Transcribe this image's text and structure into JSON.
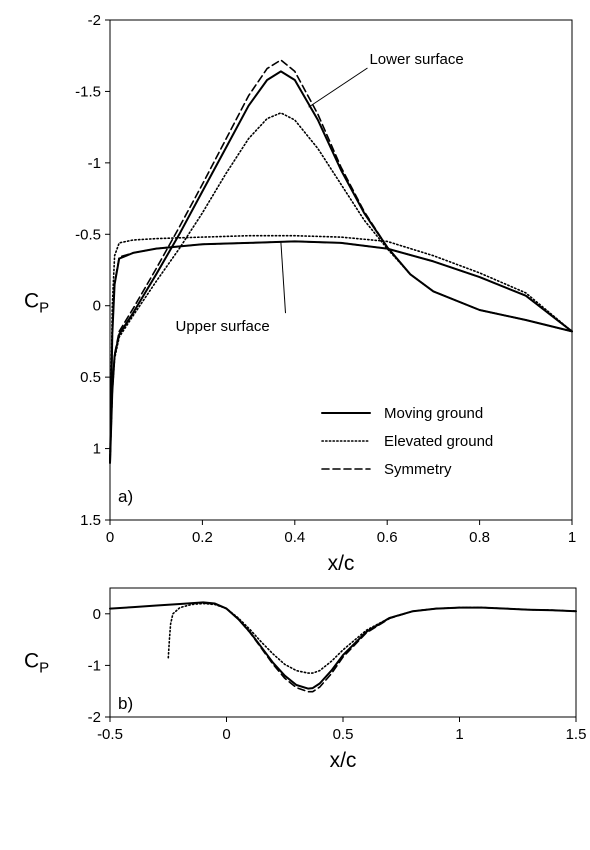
{
  "chart_data": [
    {
      "type": "line",
      "panel_label": "a)",
      "xlabel": "x/c",
      "ylabel": "C",
      "ylabel_sub": "P",
      "xlim": [
        0,
        1
      ],
      "ylim": [
        1.5,
        -2
      ],
      "y_inverted": true,
      "xticks": [
        "0",
        "0.2",
        "0.4",
        "0.6",
        "0.8",
        "1"
      ],
      "yticks": [
        "-2",
        "-1.5",
        "-1",
        "-0.5",
        "0",
        "0.5",
        "1",
        "1.5"
      ],
      "annotations": [
        {
          "text": "Lower surface",
          "x": 0.54,
          "y": -1.72,
          "arrow_to": [
            0.43,
            -1.39
          ]
        },
        {
          "text": "Upper surface",
          "x": 0.25,
          "y": 0.15,
          "arrow_to": [
            0.37,
            -0.44
          ]
        }
      ],
      "legend": {
        "position": "bottom-right",
        "entries": [
          "Moving ground",
          "Elevated ground",
          "Symmetry"
        ]
      },
      "series": [
        {
          "name": "Moving ground",
          "style": "solid",
          "upper": {
            "x": [
              0,
              0.005,
              0.01,
              0.02,
              0.05,
              0.1,
              0.2,
              0.3,
              0.4,
              0.5,
              0.6,
              0.7,
              0.8,
              0.9,
              1.0
            ],
            "y": [
              1.1,
              0.2,
              -0.15,
              -0.33,
              -0.37,
              -0.4,
              -0.43,
              -0.44,
              -0.45,
              -0.44,
              -0.4,
              -0.31,
              -0.2,
              -0.07,
              0.18
            ]
          },
          "lower": {
            "x": [
              0,
              0.005,
              0.01,
              0.02,
              0.05,
              0.1,
              0.15,
              0.2,
              0.25,
              0.3,
              0.34,
              0.37,
              0.4,
              0.45,
              0.5,
              0.55,
              0.6,
              0.65,
              0.7,
              0.8,
              0.9,
              1.0
            ],
            "y": [
              1.1,
              0.6,
              0.35,
              0.2,
              0.05,
              -0.22,
              -0.5,
              -0.8,
              -1.1,
              -1.4,
              -1.58,
              -1.64,
              -1.58,
              -1.3,
              -0.95,
              -0.65,
              -0.41,
              -0.22,
              -0.1,
              0.03,
              0.1,
              0.18
            ]
          }
        },
        {
          "name": "Elevated ground",
          "style": "dotted",
          "upper": {
            "x": [
              0,
              0.005,
              0.01,
              0.02,
              0.05,
              0.1,
              0.2,
              0.3,
              0.4,
              0.5,
              0.6,
              0.7,
              0.8,
              0.9,
              1.0
            ],
            "y": [
              1.1,
              0.0,
              -0.35,
              -0.44,
              -0.46,
              -0.47,
              -0.48,
              -0.49,
              -0.49,
              -0.48,
              -0.45,
              -0.35,
              -0.23,
              -0.09,
              0.18
            ]
          },
          "lower": {
            "x": [
              0,
              0.005,
              0.01,
              0.02,
              0.05,
              0.1,
              0.15,
              0.2,
              0.25,
              0.3,
              0.34,
              0.37,
              0.4,
              0.45,
              0.5,
              0.55,
              0.6,
              0.65,
              0.7,
              0.8,
              0.9,
              1.0
            ],
            "y": [
              1.1,
              0.6,
              0.37,
              0.22,
              0.07,
              -0.17,
              -0.4,
              -0.65,
              -0.92,
              -1.17,
              -1.31,
              -1.35,
              -1.3,
              -1.1,
              -0.85,
              -0.6,
              -0.4,
              -0.22,
              -0.1,
              0.03,
              0.1,
              0.18
            ]
          }
        },
        {
          "name": "Symmetry",
          "style": "dashed",
          "upper": {
            "x": [
              0,
              0.005,
              0.01,
              0.02,
              0.05,
              0.1,
              0.2,
              0.3,
              0.4,
              0.5,
              0.6,
              0.7,
              0.8,
              0.9,
              1.0
            ],
            "y": [
              1.1,
              0.2,
              -0.16,
              -0.34,
              -0.37,
              -0.4,
              -0.43,
              -0.44,
              -0.45,
              -0.44,
              -0.4,
              -0.31,
              -0.2,
              -0.07,
              0.18
            ]
          },
          "lower": {
            "x": [
              0,
              0.005,
              0.01,
              0.02,
              0.05,
              0.1,
              0.15,
              0.2,
              0.25,
              0.3,
              0.34,
              0.37,
              0.4,
              0.45,
              0.5,
              0.55,
              0.6,
              0.65,
              0.7,
              0.8,
              0.9,
              1.0
            ],
            "y": [
              1.1,
              0.6,
              0.34,
              0.18,
              0.02,
              -0.26,
              -0.55,
              -0.85,
              -1.16,
              -1.47,
              -1.66,
              -1.72,
              -1.64,
              -1.34,
              -0.97,
              -0.66,
              -0.41,
              -0.22,
              -0.1,
              0.03,
              0.1,
              0.18
            ]
          }
        }
      ]
    },
    {
      "type": "line",
      "panel_label": "b)",
      "xlabel": "x/c",
      "ylabel": "C",
      "ylabel_sub": "P",
      "xlim": [
        -0.5,
        1.5
      ],
      "ylim": [
        -2,
        0.5
      ],
      "xticks": [
        "-0.5",
        "0",
        "0.5",
        "1",
        "1.5"
      ],
      "yticks": [
        "0",
        "-1",
        "-2"
      ],
      "series": [
        {
          "name": "Moving ground",
          "style": "solid",
          "x": [
            -0.5,
            -0.4,
            -0.3,
            -0.2,
            -0.1,
            -0.05,
            0,
            0.05,
            0.1,
            0.15,
            0.2,
            0.25,
            0.3,
            0.35,
            0.37,
            0.4,
            0.45,
            0.5,
            0.6,
            0.7,
            0.8,
            0.9,
            1.0,
            1.1,
            1.2,
            1.3,
            1.4,
            1.5
          ],
          "y": [
            0.1,
            0.13,
            0.16,
            0.19,
            0.22,
            0.2,
            0.1,
            -0.1,
            -0.35,
            -0.65,
            -0.95,
            -1.2,
            -1.38,
            -1.45,
            -1.44,
            -1.35,
            -1.1,
            -0.8,
            -0.35,
            -0.08,
            0.05,
            0.1,
            0.12,
            0.12,
            0.1,
            0.08,
            0.07,
            0.05
          ]
        },
        {
          "name": "Elevated ground",
          "style": "dotted",
          "x": [
            -0.25,
            -0.245,
            -0.24,
            -0.23,
            -0.2,
            -0.15,
            -0.1,
            -0.05,
            0,
            0.05,
            0.1,
            0.15,
            0.2,
            0.25,
            0.3,
            0.35,
            0.37,
            0.4,
            0.45,
            0.5,
            0.6,
            0.7,
            0.8,
            0.9,
            1.0,
            1.1,
            1.2,
            1.3,
            1.4,
            1.5
          ],
          "y": [
            -0.85,
            -0.5,
            -0.2,
            0.0,
            0.12,
            0.18,
            0.2,
            0.18,
            0.1,
            -0.08,
            -0.3,
            -0.55,
            -0.78,
            -0.98,
            -1.1,
            -1.15,
            -1.15,
            -1.1,
            -0.92,
            -0.7,
            -0.32,
            -0.08,
            0.05,
            0.1,
            0.12,
            0.12,
            0.1,
            0.08,
            0.07,
            0.05
          ]
        },
        {
          "name": "Symmetry",
          "style": "dashed",
          "x": [
            -0.1,
            -0.05,
            0,
            0.05,
            0.1,
            0.15,
            0.2,
            0.25,
            0.3,
            0.35,
            0.37,
            0.4,
            0.45,
            0.5,
            0.6,
            0.7,
            0.8,
            0.9,
            1.0,
            1.1,
            1.2,
            1.3,
            1.4,
            1.5
          ],
          "y": [
            0.21,
            0.19,
            0.1,
            -0.1,
            -0.36,
            -0.67,
            -0.98,
            -1.25,
            -1.43,
            -1.51,
            -1.51,
            -1.42,
            -1.16,
            -0.84,
            -0.37,
            -0.09,
            0.05,
            0.1,
            0.12,
            0.12,
            0.1,
            0.08,
            0.07,
            0.05
          ]
        }
      ]
    }
  ]
}
